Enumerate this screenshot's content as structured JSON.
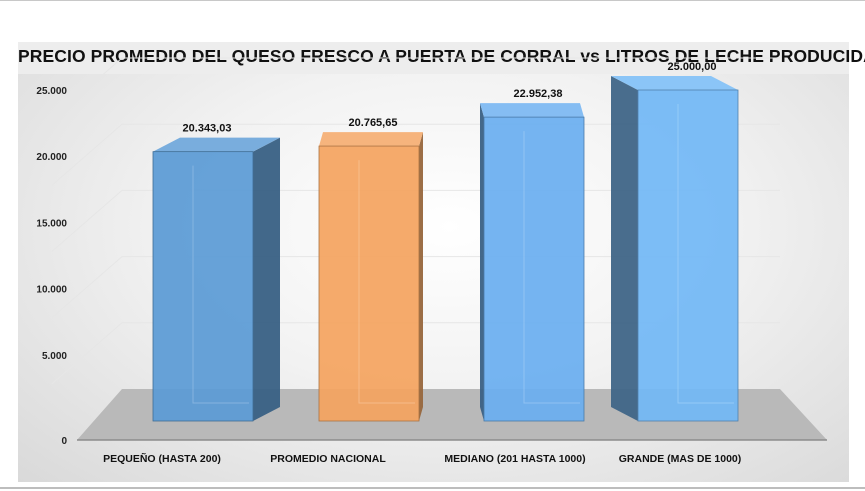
{
  "chart_data": {
    "type": "bar",
    "title": "PRECIO PROMEDIO DEL QUESO FRESCO A PUERTA DE CORRAL vs LITROS DE LECHE PRODUCIDA",
    "categories": [
      "PEQUEÑO (HASTA 200)",
      "PROMEDIO NACIONAL",
      "MEDIANO (201 HASTA 1000)",
      "GRANDE  (MAS DE 1000)"
    ],
    "values": [
      20343.03,
      20765.65,
      22952.38,
      25000.0
    ],
    "data_labels": [
      "20.343,03",
      "20.765,65",
      "22.952,38",
      "25.000,00"
    ],
    "bar_colors": [
      "#5b9bd5",
      "#f4a460",
      "#6aaef0",
      "#72b8f5"
    ],
    "ylim": [
      0,
      25000
    ],
    "yticks": [
      0,
      5000,
      10000,
      15000,
      20000,
      25000
    ],
    "ytick_labels": [
      "0",
      "5.000",
      "10.000",
      "15.000",
      "20.000",
      "25.000"
    ],
    "xlabel": "",
    "ylabel": "",
    "grid": true,
    "style": "3d-bar",
    "legend": "none"
  }
}
